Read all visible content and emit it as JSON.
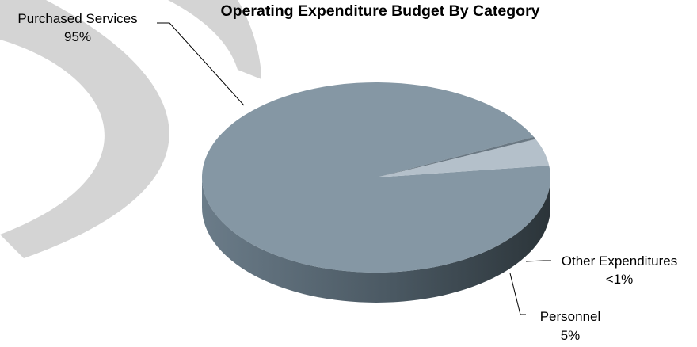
{
  "chart_data": {
    "type": "pie",
    "title": "Operating Expenditure Budget By Category",
    "slices": [
      {
        "name": "Purchased Services",
        "value": 95,
        "label": "95%",
        "color": "#8597a4"
      },
      {
        "name": "Personnel",
        "value": 4.6,
        "label": "5%",
        "color": "#b4c0ca"
      },
      {
        "name": "Other Expenditures",
        "value": 0.4,
        "label": "<1%",
        "color": "#6a7883"
      }
    ],
    "legend": "none",
    "style": "3d"
  }
}
